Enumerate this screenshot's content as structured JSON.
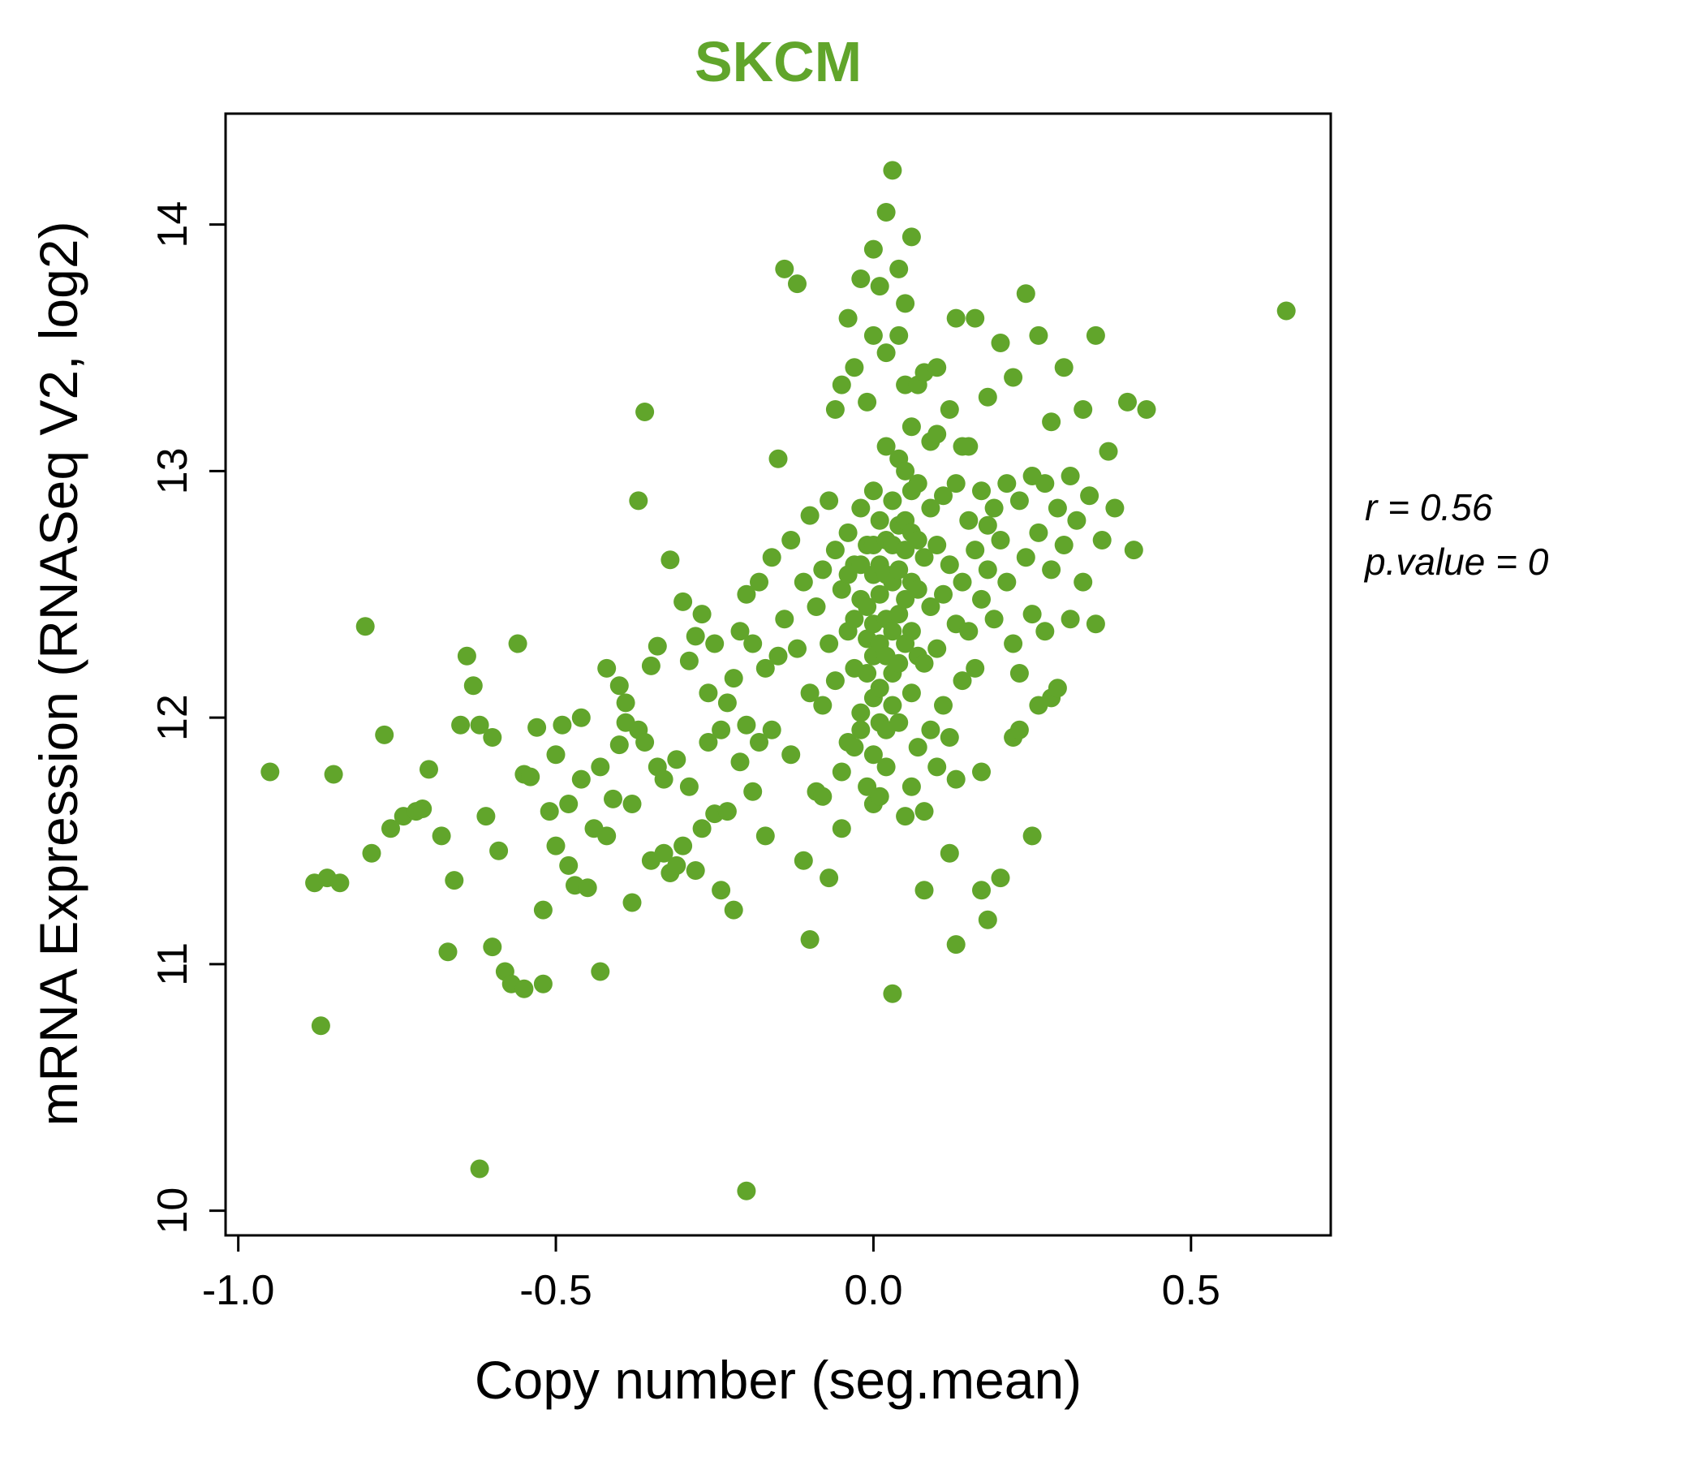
{
  "title": "SKCM",
  "colors": {
    "accent_green": "#61A52B",
    "axis_black": "#000000"
  },
  "chart_data": {
    "type": "scatter",
    "title": "SKCM",
    "xlabel": "Copy number (seg.mean)",
    "ylabel": "mRNA Expression (RNASeq V2, log2)",
    "xlim": [
      -1.02,
      0.72
    ],
    "ylim": [
      9.9,
      14.45
    ],
    "x_tick_values": [
      -1.0,
      -0.5,
      0.0,
      0.5
    ],
    "x_tick_labels": [
      "-1.0",
      "-0.5",
      "0.0",
      "0.5"
    ],
    "y_tick_values": [
      10,
      11,
      12,
      13,
      14
    ],
    "y_tick_labels": [
      "10",
      "11",
      "12",
      "13",
      "14"
    ],
    "grid": false,
    "legend": "none",
    "point_color": "#61A52B",
    "title_color": "#61A52B",
    "annotations": [
      "r = 0.56",
      "p.value = 0"
    ],
    "points": [
      [
        -0.95,
        11.78
      ],
      [
        -0.88,
        11.33
      ],
      [
        -0.87,
        10.75
      ],
      [
        -0.86,
        11.35
      ],
      [
        -0.85,
        11.77
      ],
      [
        -0.84,
        11.33
      ],
      [
        -0.8,
        12.37
      ],
      [
        -0.79,
        11.45
      ],
      [
        -0.77,
        11.93
      ],
      [
        -0.76,
        11.55
      ],
      [
        -0.74,
        11.6
      ],
      [
        -0.72,
        11.62
      ],
      [
        -0.71,
        11.63
      ],
      [
        -0.7,
        11.79
      ],
      [
        -0.68,
        11.52
      ],
      [
        -0.67,
        11.05
      ],
      [
        -0.66,
        11.34
      ],
      [
        -0.65,
        11.97
      ],
      [
        -0.64,
        12.25
      ],
      [
        -0.63,
        12.13
      ],
      [
        -0.62,
        10.17
      ],
      [
        -0.62,
        11.97
      ],
      [
        -0.61,
        11.6
      ],
      [
        -0.6,
        11.92
      ],
      [
        -0.6,
        11.07
      ],
      [
        -0.59,
        11.46
      ],
      [
        -0.58,
        10.97
      ],
      [
        -0.57,
        10.92
      ],
      [
        -0.56,
        12.3
      ],
      [
        -0.55,
        11.77
      ],
      [
        -0.55,
        10.9
      ],
      [
        -0.54,
        11.76
      ],
      [
        -0.53,
        11.96
      ],
      [
        -0.52,
        11.22
      ],
      [
        -0.52,
        10.92
      ],
      [
        -0.51,
        11.62
      ],
      [
        -0.5,
        11.85
      ],
      [
        -0.5,
        11.48
      ],
      [
        -0.49,
        11.97
      ],
      [
        -0.48,
        11.4
      ],
      [
        -0.48,
        11.65
      ],
      [
        -0.47,
        11.32
      ],
      [
        -0.46,
        11.75
      ],
      [
        -0.46,
        12.0
      ],
      [
        -0.45,
        11.31
      ],
      [
        -0.44,
        11.55
      ],
      [
        -0.43,
        11.8
      ],
      [
        -0.43,
        10.97
      ],
      [
        -0.42,
        12.2
      ],
      [
        -0.42,
        11.52
      ],
      [
        -0.41,
        11.67
      ],
      [
        -0.4,
        12.13
      ],
      [
        -0.4,
        11.89
      ],
      [
        -0.39,
        11.98
      ],
      [
        -0.39,
        12.06
      ],
      [
        -0.38,
        11.65
      ],
      [
        -0.38,
        11.25
      ],
      [
        -0.37,
        12.88
      ],
      [
        -0.37,
        11.95
      ],
      [
        -0.36,
        13.24
      ],
      [
        -0.36,
        11.9
      ],
      [
        -0.35,
        11.42
      ],
      [
        -0.35,
        12.21
      ],
      [
        -0.34,
        11.8
      ],
      [
        -0.34,
        12.29
      ],
      [
        -0.33,
        11.75
      ],
      [
        -0.33,
        11.45
      ],
      [
        -0.32,
        12.64
      ],
      [
        -0.32,
        11.37
      ],
      [
        -0.31,
        11.83
      ],
      [
        -0.31,
        11.4
      ],
      [
        -0.3,
        12.47
      ],
      [
        -0.3,
        11.48
      ],
      [
        -0.29,
        12.23
      ],
      [
        -0.29,
        11.72
      ],
      [
        -0.28,
        12.33
      ],
      [
        -0.28,
        11.38
      ],
      [
        -0.27,
        12.42
      ],
      [
        -0.27,
        11.55
      ],
      [
        -0.26,
        11.9
      ],
      [
        -0.26,
        12.1
      ],
      [
        -0.25,
        11.61
      ],
      [
        -0.25,
        12.3
      ],
      [
        -0.24,
        11.95
      ],
      [
        -0.24,
        11.3
      ],
      [
        -0.23,
        12.06
      ],
      [
        -0.23,
        11.62
      ],
      [
        -0.22,
        12.16
      ],
      [
        -0.22,
        11.22
      ],
      [
        -0.21,
        11.82
      ],
      [
        -0.21,
        12.35
      ],
      [
        -0.2,
        10.08
      ],
      [
        -0.2,
        11.97
      ],
      [
        -0.2,
        12.5
      ],
      [
        -0.19,
        12.3
      ],
      [
        -0.19,
        11.7
      ],
      [
        -0.18,
        12.55
      ],
      [
        -0.18,
        11.9
      ],
      [
        -0.17,
        12.2
      ],
      [
        -0.17,
        11.52
      ],
      [
        -0.16,
        12.65
      ],
      [
        -0.16,
        11.95
      ],
      [
        -0.15,
        13.05
      ],
      [
        -0.15,
        12.25
      ],
      [
        -0.14,
        13.82
      ],
      [
        -0.14,
        12.4
      ],
      [
        -0.13,
        12.72
      ],
      [
        -0.13,
        11.85
      ],
      [
        -0.12,
        13.76
      ],
      [
        -0.12,
        12.28
      ],
      [
        -0.11,
        12.55
      ],
      [
        -0.11,
        11.42
      ],
      [
        -0.1,
        12.82
      ],
      [
        -0.1,
        12.1
      ],
      [
        -0.1,
        11.1
      ],
      [
        -0.09,
        12.45
      ],
      [
        -0.09,
        11.7
      ],
      [
        -0.08,
        12.6
      ],
      [
        -0.08,
        12.05
      ],
      [
        -0.08,
        11.68
      ],
      [
        -0.07,
        12.88
      ],
      [
        -0.07,
        12.3
      ],
      [
        -0.07,
        11.35
      ],
      [
        -0.06,
        13.25
      ],
      [
        -0.06,
        12.68
      ],
      [
        -0.06,
        12.15
      ],
      [
        -0.05,
        13.35
      ],
      [
        -0.05,
        12.52
      ],
      [
        -0.05,
        11.78
      ],
      [
        -0.05,
        11.55
      ],
      [
        -0.04,
        13.62
      ],
      [
        -0.04,
        12.75
      ],
      [
        -0.04,
        12.58
      ],
      [
        -0.04,
        12.35
      ],
      [
        -0.04,
        11.9
      ],
      [
        -0.03,
        13.42
      ],
      [
        -0.03,
        12.62
      ],
      [
        -0.03,
        12.4
      ],
      [
        -0.03,
        12.2
      ],
      [
        -0.03,
        11.88
      ],
      [
        -0.02,
        13.78
      ],
      [
        -0.02,
        12.85
      ],
      [
        -0.02,
        12.62
      ],
      [
        -0.02,
        12.48
      ],
      [
        -0.02,
        12.02
      ],
      [
        -0.02,
        11.95
      ],
      [
        -0.01,
        13.28
      ],
      [
        -0.01,
        12.7
      ],
      [
        -0.01,
        12.45
      ],
      [
        -0.01,
        12.32
      ],
      [
        -0.01,
        12.18
      ],
      [
        -0.01,
        11.72
      ],
      [
        0.0,
        13.9
      ],
      [
        0.0,
        13.55
      ],
      [
        0.0,
        12.92
      ],
      [
        0.0,
        12.7
      ],
      [
        0.0,
        12.58
      ],
      [
        0.0,
        12.38
      ],
      [
        0.0,
        12.25
      ],
      [
        0.0,
        12.08
      ],
      [
        0.0,
        11.85
      ],
      [
        0.0,
        11.65
      ],
      [
        0.01,
        13.75
      ],
      [
        0.01,
        12.8
      ],
      [
        0.01,
        12.62
      ],
      [
        0.01,
        12.5
      ],
      [
        0.01,
        12.3
      ],
      [
        0.01,
        12.12
      ],
      [
        0.01,
        11.98
      ],
      [
        0.01,
        11.68
      ],
      [
        0.02,
        14.05
      ],
      [
        0.02,
        13.48
      ],
      [
        0.02,
        13.1
      ],
      [
        0.02,
        12.72
      ],
      [
        0.02,
        12.58
      ],
      [
        0.02,
        12.4
      ],
      [
        0.02,
        12.25
      ],
      [
        0.02,
        11.95
      ],
      [
        0.02,
        11.8
      ],
      [
        0.03,
        14.22
      ],
      [
        0.03,
        12.88
      ],
      [
        0.03,
        12.7
      ],
      [
        0.03,
        12.55
      ],
      [
        0.03,
        12.35
      ],
      [
        0.03,
        12.18
      ],
      [
        0.03,
        12.05
      ],
      [
        0.03,
        10.88
      ],
      [
        0.04,
        13.82
      ],
      [
        0.04,
        13.55
      ],
      [
        0.04,
        13.05
      ],
      [
        0.04,
        12.78
      ],
      [
        0.04,
        12.6
      ],
      [
        0.04,
        12.42
      ],
      [
        0.04,
        12.22
      ],
      [
        0.04,
        11.98
      ],
      [
        0.05,
        13.68
      ],
      [
        0.05,
        13.35
      ],
      [
        0.05,
        13.0
      ],
      [
        0.05,
        12.8
      ],
      [
        0.05,
        12.68
      ],
      [
        0.05,
        12.48
      ],
      [
        0.05,
        12.3
      ],
      [
        0.05,
        11.6
      ],
      [
        0.06,
        13.95
      ],
      [
        0.06,
        13.18
      ],
      [
        0.06,
        12.92
      ],
      [
        0.06,
        12.75
      ],
      [
        0.06,
        12.55
      ],
      [
        0.06,
        12.35
      ],
      [
        0.06,
        12.1
      ],
      [
        0.06,
        11.72
      ],
      [
        0.07,
        13.35
      ],
      [
        0.07,
        12.95
      ],
      [
        0.07,
        12.72
      ],
      [
        0.07,
        12.52
      ],
      [
        0.07,
        12.25
      ],
      [
        0.07,
        11.88
      ],
      [
        0.08,
        13.4
      ],
      [
        0.08,
        12.65
      ],
      [
        0.08,
        12.22
      ],
      [
        0.08,
        11.62
      ],
      [
        0.08,
        11.3
      ],
      [
        0.09,
        13.12
      ],
      [
        0.09,
        12.85
      ],
      [
        0.09,
        12.45
      ],
      [
        0.09,
        11.95
      ],
      [
        0.1,
        13.42
      ],
      [
        0.1,
        13.15
      ],
      [
        0.1,
        12.7
      ],
      [
        0.1,
        12.28
      ],
      [
        0.1,
        11.8
      ],
      [
        0.11,
        12.9
      ],
      [
        0.11,
        12.5
      ],
      [
        0.11,
        12.05
      ],
      [
        0.12,
        13.25
      ],
      [
        0.12,
        12.62
      ],
      [
        0.12,
        11.92
      ],
      [
        0.12,
        11.45
      ],
      [
        0.13,
        13.62
      ],
      [
        0.13,
        12.95
      ],
      [
        0.13,
        12.38
      ],
      [
        0.13,
        11.75
      ],
      [
        0.13,
        11.08
      ],
      [
        0.14,
        13.1
      ],
      [
        0.14,
        12.55
      ],
      [
        0.14,
        12.15
      ],
      [
        0.15,
        13.1
      ],
      [
        0.15,
        12.8
      ],
      [
        0.15,
        12.35
      ],
      [
        0.16,
        13.62
      ],
      [
        0.16,
        12.68
      ],
      [
        0.16,
        12.2
      ],
      [
        0.17,
        12.92
      ],
      [
        0.17,
        12.48
      ],
      [
        0.17,
        11.78
      ],
      [
        0.17,
        11.3
      ],
      [
        0.18,
        13.3
      ],
      [
        0.18,
        12.78
      ],
      [
        0.18,
        12.6
      ],
      [
        0.18,
        11.18
      ],
      [
        0.19,
        12.85
      ],
      [
        0.19,
        12.4
      ],
      [
        0.2,
        13.52
      ],
      [
        0.2,
        12.72
      ],
      [
        0.2,
        11.35
      ],
      [
        0.21,
        12.95
      ],
      [
        0.21,
        12.55
      ],
      [
        0.22,
        13.38
      ],
      [
        0.22,
        12.3
      ],
      [
        0.22,
        11.92
      ],
      [
        0.23,
        12.88
      ],
      [
        0.23,
        12.18
      ],
      [
        0.23,
        11.95
      ],
      [
        0.24,
        13.72
      ],
      [
        0.24,
        12.65
      ],
      [
        0.25,
        12.98
      ],
      [
        0.25,
        12.42
      ],
      [
        0.25,
        11.52
      ],
      [
        0.26,
        13.55
      ],
      [
        0.26,
        12.75
      ],
      [
        0.26,
        12.05
      ],
      [
        0.27,
        12.95
      ],
      [
        0.27,
        12.35
      ],
      [
        0.28,
        13.2
      ],
      [
        0.28,
        12.6
      ],
      [
        0.28,
        12.08
      ],
      [
        0.29,
        12.85
      ],
      [
        0.29,
        12.12
      ],
      [
        0.3,
        13.42
      ],
      [
        0.3,
        12.7
      ],
      [
        0.31,
        12.98
      ],
      [
        0.31,
        12.4
      ],
      [
        0.32,
        12.8
      ],
      [
        0.33,
        13.25
      ],
      [
        0.33,
        12.55
      ],
      [
        0.34,
        12.9
      ],
      [
        0.35,
        13.55
      ],
      [
        0.35,
        12.38
      ],
      [
        0.36,
        12.72
      ],
      [
        0.37,
        13.08
      ],
      [
        0.38,
        12.85
      ],
      [
        0.4,
        13.28
      ],
      [
        0.41,
        12.68
      ],
      [
        0.43,
        13.25
      ],
      [
        0.65,
        13.65
      ]
    ]
  }
}
